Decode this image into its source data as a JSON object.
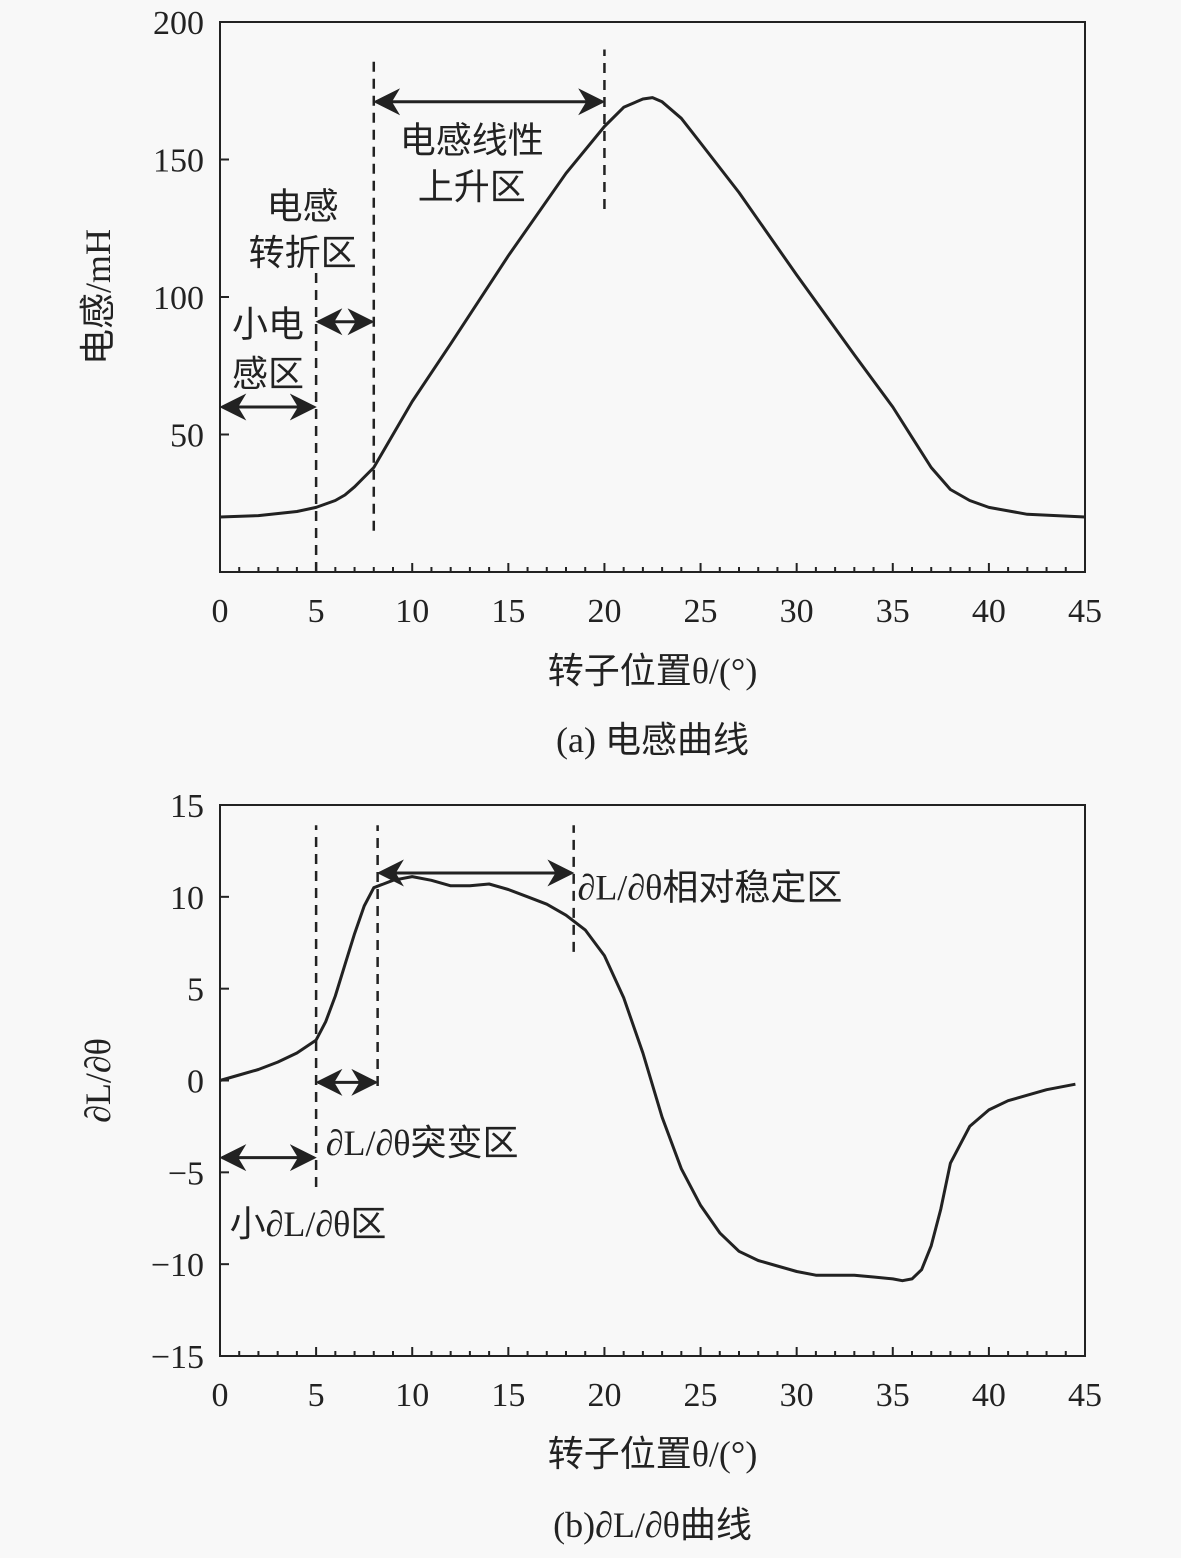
{
  "chart_data": [
    {
      "type": "line",
      "caption": "(a) 电感曲线",
      "xlabel": "转子位置θ/(°)",
      "ylabel": "电感/mH",
      "xlim": [
        0,
        45
      ],
      "ylim": [
        0,
        200
      ],
      "xticks": [
        0,
        5,
        10,
        15,
        20,
        25,
        30,
        35,
        40,
        45
      ],
      "yticks": [
        50,
        100,
        150,
        200
      ],
      "grid": false,
      "series": [
        {
          "x": [
            0,
            2,
            4,
            5,
            6,
            6.5,
            7,
            8,
            10,
            12,
            15,
            18,
            20,
            21,
            22,
            22.5,
            23,
            24,
            25,
            27,
            30,
            33,
            35,
            36,
            37,
            38,
            39,
            40,
            42,
            45
          ],
          "y": [
            20,
            20.5,
            22,
            23.5,
            26,
            28,
            31,
            38,
            62,
            83,
            115,
            145,
            162,
            169,
            172,
            172.5,
            171,
            165,
            156,
            138,
            108,
            79,
            60,
            49,
            38,
            30,
            26,
            23.5,
            21,
            20
          ]
        }
      ],
      "dashed_lines": [
        {
          "x": 5,
          "y": [
            0,
            110
          ]
        },
        {
          "x": 8,
          "y": [
            15,
            187
          ]
        },
        {
          "x": 20,
          "y": [
            132,
            190
          ]
        }
      ],
      "arrows": [
        {
          "x": [
            0,
            5
          ],
          "y": 60
        },
        {
          "x": 5,
          "y2": 8,
          "x2": 8,
          "xr": [
            5,
            8
          ],
          "yv": 91
        },
        {
          "x": [
            8,
            20
          ],
          "y": 171
        }
      ],
      "annotations": [
        {
          "lines": [
            "电感线性",
            "上升区"
          ],
          "x": 13.1,
          "y": [
            157,
            140
          ],
          "anchor": "middle"
        },
        {
          "lines": [
            "电感",
            "转折区"
          ],
          "x": 4.3,
          "y": [
            133,
            116
          ],
          "anchor": "middle"
        },
        {
          "lines": [
            "小电",
            "感区"
          ],
          "x": 2.5,
          "y": [
            90,
            72
          ],
          "anchor": "middle"
        }
      ]
    },
    {
      "type": "line",
      "caption": "(b)∂L/∂θ曲线",
      "xlabel": "转子位置θ/(°)",
      "ylabel": "∂L/∂θ",
      "xlim": [
        0,
        45
      ],
      "ylim": [
        -15,
        15
      ],
      "xticks": [
        0,
        5,
        10,
        15,
        20,
        25,
        30,
        35,
        40,
        45
      ],
      "yticks": [
        -15,
        -10,
        -5,
        0,
        5,
        10,
        15
      ],
      "grid": false,
      "series": [
        {
          "x": [
            0,
            1,
            2,
            3,
            4,
            5,
            5.5,
            6,
            6.5,
            7,
            7.5,
            8,
            9,
            10,
            11,
            12,
            13,
            14,
            15,
            16,
            17,
            18,
            19,
            20,
            21,
            22,
            23,
            24,
            25,
            26,
            27,
            28,
            29,
            30,
            31,
            32,
            33,
            34,
            35,
            35.5,
            36,
            36.5,
            37,
            37.5,
            38,
            39,
            40,
            41,
            42,
            43,
            44.5
          ],
          "y": [
            0,
            0.3,
            0.6,
            1,
            1.5,
            2.2,
            3.2,
            4.6,
            6.3,
            8,
            9.5,
            10.5,
            10.9,
            11.1,
            10.9,
            10.6,
            10.6,
            10.7,
            10.4,
            10,
            9.6,
            9,
            8.2,
            6.8,
            4.5,
            1.5,
            -2,
            -4.8,
            -6.8,
            -8.3,
            -9.3,
            -9.8,
            -10.1,
            -10.4,
            -10.6,
            -10.6,
            -10.6,
            -10.7,
            -10.8,
            -10.9,
            -10.8,
            -10.3,
            -9,
            -7,
            -4.5,
            -2.5,
            -1.6,
            -1.1,
            -0.8,
            -0.5,
            -0.2
          ]
        }
      ],
      "dashed_lines": [
        {
          "x": 5,
          "y": [
            -5.8,
            13.9
          ]
        },
        {
          "x": 8.2,
          "y": [
            -0.3,
            13.9
          ]
        },
        {
          "x": 18.4,
          "y": [
            7,
            13.9
          ]
        }
      ],
      "arrows": [
        {
          "x": [
            5,
            8.2
          ],
          "y": -0.1
        },
        {
          "x": [
            0,
            5
          ],
          "y": -4.2
        },
        {
          "x": [
            8.2,
            18.4
          ],
          "y": 11.3
        }
      ],
      "annotations": [
        {
          "lines": [
            "∂L/∂θ相对稳定区"
          ],
          "x": 18.6,
          "y": [
            10.5
          ],
          "anchor": "start"
        },
        {
          "lines": [
            "∂L/∂θ突变区"
          ],
          "x": 5.5,
          "y": [
            -3.4
          ],
          "anchor": "start"
        },
        {
          "lines": [
            "小∂L/∂θ区"
          ],
          "x": 0.5,
          "y": [
            -7.8
          ],
          "anchor": "start"
        }
      ]
    }
  ]
}
